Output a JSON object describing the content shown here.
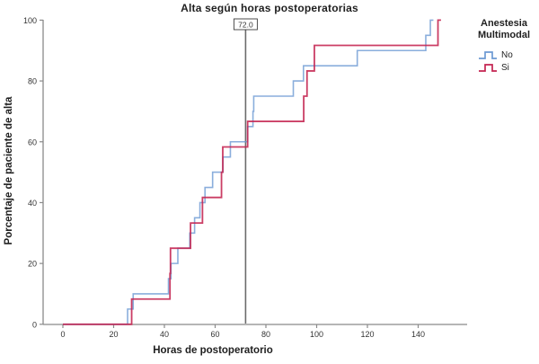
{
  "title": "Alta según horas postoperatorias",
  "legend": {
    "title_line1": "Anestesia",
    "title_line2": "Multimodal",
    "items": [
      {
        "label": "No",
        "color": "#6D9AD3"
      },
      {
        "label": "Si",
        "color": "#C42350"
      }
    ]
  },
  "reference_line": {
    "x": 72,
    "label": "72.0",
    "color": "#6b6b6b"
  },
  "colors": {
    "axis": "#8a8a8a",
    "tick_text": "#333333",
    "series_no": "#6D9AD3",
    "series_si": "#C42350"
  },
  "chart_data": {
    "type": "line",
    "subtype": "step-cumulative",
    "title": "Alta según horas postoperatorias",
    "xlabel": "Horas de postoperatorio",
    "ylabel": "Porcentaje de paciente de alta",
    "xlim": [
      0,
      160
    ],
    "ylim": [
      0,
      100
    ],
    "x_ticks": [
      0,
      20,
      40,
      60,
      80,
      100,
      120,
      140
    ],
    "y_ticks": [
      0,
      20,
      40,
      60,
      80,
      100
    ],
    "grid": false,
    "legend_position": "right",
    "reference_line_x": 72,
    "reference_line_label": "72.0",
    "series": [
      {
        "name": "No",
        "color": "#6D9AD3",
        "start": [
          0,
          0
        ],
        "end_x": 146,
        "events": [
          [
            25.5,
            5
          ],
          [
            27.7,
            10
          ],
          [
            41.6,
            15
          ],
          [
            42.6,
            20
          ],
          [
            45.3,
            25
          ],
          [
            50.0,
            30
          ],
          [
            51.9,
            35
          ],
          [
            54.0,
            40
          ],
          [
            56.0,
            45
          ],
          [
            59.0,
            50
          ],
          [
            63.1,
            55
          ],
          [
            66.0,
            60
          ],
          [
            72.8,
            65
          ],
          [
            74.9,
            70
          ],
          [
            75.2,
            75
          ],
          [
            90.8,
            80
          ],
          [
            94.8,
            85
          ],
          [
            116.0,
            90
          ],
          [
            143.0,
            95
          ],
          [
            144.8,
            100
          ]
        ]
      },
      {
        "name": "Si",
        "color": "#C42350",
        "start": [
          0,
          0
        ],
        "end_x": 149,
        "events": [
          [
            27.1,
            8.3
          ],
          [
            42.2,
            16.7
          ],
          [
            42.4,
            25
          ],
          [
            50.3,
            33.3
          ],
          [
            55.0,
            41.7
          ],
          [
            62.5,
            50
          ],
          [
            63.0,
            58.3
          ],
          [
            72.8,
            66.7
          ],
          [
            94.9,
            75
          ],
          [
            96.2,
            83.3
          ],
          [
            99.1,
            91.7
          ],
          [
            147.8,
            100
          ]
        ]
      }
    ]
  }
}
